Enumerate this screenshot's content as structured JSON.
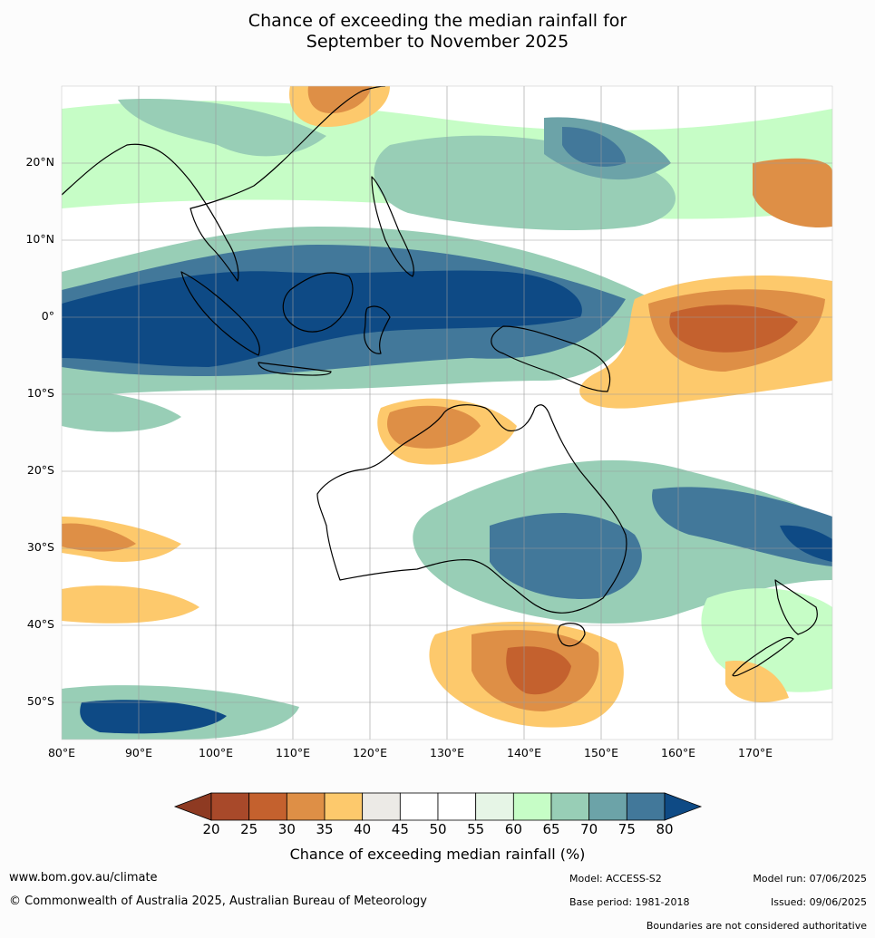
{
  "title": {
    "line1": "Chance of exceeding the median rainfall for",
    "line2": "September to November 2025"
  },
  "map": {
    "lat_labels": [
      "20°N",
      "10°N",
      "0°",
      "10°S",
      "20°S",
      "30°S",
      "40°S",
      "50°S"
    ],
    "lon_labels": [
      "80°E",
      "90°E",
      "100°E",
      "110°E",
      "120°E",
      "130°E",
      "140°E",
      "150°E",
      "160°E",
      "170°E"
    ],
    "extent": {
      "lon": [
        80,
        180
      ],
      "lat": [
        -55,
        30
      ]
    },
    "grid": true
  },
  "colorbar": {
    "title": "Chance of exceeding median rainfall (%)",
    "ticks": [
      "20",
      "25",
      "30",
      "35",
      "40",
      "45",
      "50",
      "55",
      "60",
      "65",
      "70",
      "75",
      "80"
    ],
    "colors": [
      "#a8492a",
      "#c4612e",
      "#de8f46",
      "#fdc96c",
      "#eceae6",
      "#ffffff",
      "#ffffff",
      "#e6f5e6",
      "#c6fdc6",
      "#98ceb6",
      "#6ca3a8",
      "#42789a"
    ],
    "under_color": "#8e3a22",
    "over_color": "#0e4a85"
  },
  "footer": {
    "website": "www.bom.gov.au/climate",
    "copyright": "© Commonwealth of Australia 2025, Australian Bureau of Meteorology",
    "model": "Model: ACCESS-S2",
    "base_period": "Base period: 1981-2018",
    "model_run": "Model run: 07/06/2025",
    "issued": "Issued: 09/06/2025",
    "disclaimer": "Boundaries are not considered authoritative"
  }
}
